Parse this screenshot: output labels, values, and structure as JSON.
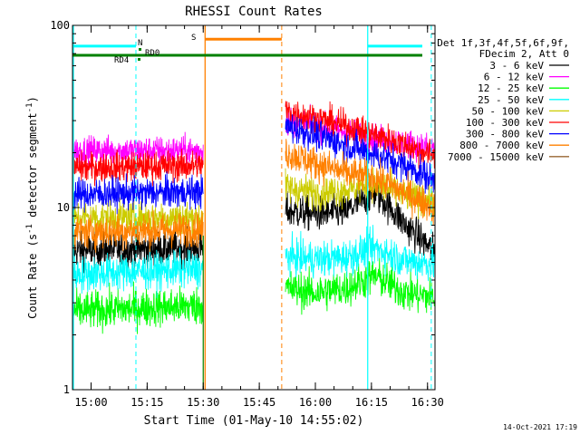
{
  "chart_data": {
    "type": "line",
    "title": "RHESSI Count Rates",
    "xlabel": "Start Time (01-May-10 14:55:02)",
    "ylabel_main": "Count Rate (s",
    "ylabel_sup": "-1",
    "ylabel_mid": " detector segment",
    "ylabel_sup2": "-1",
    "ylabel_end": ")",
    "yscale": "log",
    "xlim": [
      "14:55:02",
      "16:32:00"
    ],
    "ylim": [
      1,
      100
    ],
    "x_ticks": [
      "15:00",
      "15:15",
      "15:30",
      "15:45",
      "16:00",
      "16:15",
      "16:30"
    ],
    "y_ticks": [
      "1",
      "10",
      "100"
    ],
    "timestamp": "14-Oct-2021 17:19",
    "legend": {
      "header1": "Det 1f,3f,4f,5f,6f,9f,",
      "header2": "FDecim 2, Att 0",
      "entries": [
        {
          "label": "3 - 6 keV",
          "color": "#000000"
        },
        {
          "label": "6 - 12 keV",
          "color": "#ff00ff"
        },
        {
          "label": "12 - 25 keV",
          "color": "#00ff00"
        },
        {
          "label": "25 - 50 keV",
          "color": "#00ffff"
        },
        {
          "label": "50 - 100 keV",
          "color": "#cccc00"
        },
        {
          "label": "100 - 300 keV",
          "color": "#ff0000"
        },
        {
          "label": "300 - 800 keV",
          "color": "#0000ff"
        },
        {
          "label": "800 - 7000 keV",
          "color": "#ff8000"
        },
        {
          "label": "7000 - 15000 keV",
          "color": "#996633"
        }
      ]
    },
    "data_gap": [
      "15:30",
      "15:52"
    ],
    "series": [
      {
        "name": "3 - 6 keV",
        "color": "#000000",
        "before_gap": [
          5.8,
          6.0
        ],
        "after_gap": [
          9.6,
          9.2,
          9.5,
          12.0,
          8.0,
          5.6
        ]
      },
      {
        "name": "6 - 12 keV",
        "color": "#ff00ff",
        "before_gap": [
          20.5,
          20.5
        ],
        "after_gap": [
          30.0,
          28.0,
          26.0,
          24.0,
          22.5,
          21.0
        ]
      },
      {
        "name": "12 - 25 keV",
        "color": "#00ff00",
        "before_gap": [
          2.7,
          2.9
        ],
        "after_gap": [
          3.6,
          3.4,
          3.6,
          4.2,
          3.4,
          3.2
        ]
      },
      {
        "name": "25 - 50 keV",
        "color": "#00ffff",
        "before_gap": [
          4.3,
          4.6
        ],
        "after_gap": [
          5.4,
          5.2,
          5.3,
          6.0,
          5.1,
          4.9
        ]
      },
      {
        "name": "50 - 100 keV",
        "color": "#cccc00",
        "before_gap": [
          8.8,
          8.8
        ],
        "after_gap": [
          13.0,
          12.0,
          12.5,
          13.5,
          11.5,
          11.0
        ]
      },
      {
        "name": "100 - 300 keV",
        "color": "#ff0000",
        "before_gap": [
          16.5,
          17.0
        ],
        "after_gap": [
          34.0,
          31.0,
          28.0,
          25.0,
          22.0,
          19.0
        ]
      },
      {
        "name": "300 - 800 keV",
        "color": "#0000ff",
        "before_gap": [
          11.8,
          12.2
        ],
        "after_gap": [
          28.0,
          25.0,
          22.0,
          19.5,
          17.0,
          14.0
        ]
      },
      {
        "name": "800 - 7000 keV",
        "color": "#ff8000",
        "before_gap": [
          7.3,
          7.6
        ],
        "after_gap": [
          20.0,
          17.5,
          15.5,
          14.5,
          12.0,
          9.8
        ]
      }
    ],
    "flags": [
      {
        "label": "N",
        "color": "#00ffff"
      },
      {
        "label": "RD0",
        "color": "#008000"
      },
      {
        "label": "RD4",
        "color": "#008000"
      },
      {
        "label": "S",
        "color": "#ff8000"
      }
    ]
  }
}
